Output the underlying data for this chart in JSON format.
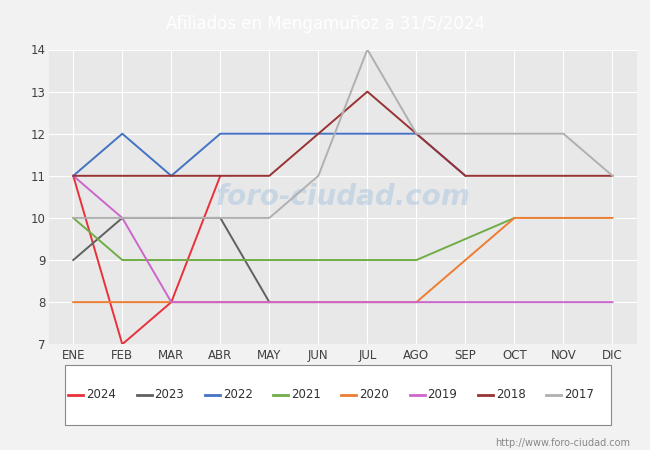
{
  "title": "Afiliados en Mengamuñoz a 31/5/2024",
  "header_bg": "#5b9bd5",
  "months": [
    "ENE",
    "FEB",
    "MAR",
    "ABR",
    "MAY",
    "JUN",
    "JUL",
    "AGO",
    "SEP",
    "OCT",
    "NOV",
    "DIC"
  ],
  "ylim": [
    7.0,
    14.0
  ],
  "yticks": [
    7.0,
    8.0,
    9.0,
    10.0,
    11.0,
    12.0,
    13.0,
    14.0
  ],
  "series": {
    "2024": {
      "color": "#e8313a",
      "data": [
        11,
        7,
        8,
        11,
        null,
        null,
        null,
        null,
        null,
        null,
        null,
        null
      ]
    },
    "2023": {
      "color": "#606060",
      "data": [
        9,
        10,
        10,
        10,
        8,
        null,
        null,
        null,
        null,
        null,
        null,
        null
      ]
    },
    "2022": {
      "color": "#4472c4",
      "data": [
        11,
        12,
        11,
        12,
        12,
        12,
        12,
        12,
        11,
        null,
        null,
        null
      ]
    },
    "2021": {
      "color": "#70ad47",
      "data": [
        10,
        9,
        9,
        9,
        9,
        9,
        9,
        9,
        null,
        10,
        null,
        null
      ]
    },
    "2020": {
      "color": "#ed7d31",
      "data": [
        8,
        8,
        8,
        8,
        8,
        8,
        8,
        8,
        9,
        10,
        10,
        10
      ]
    },
    "2019": {
      "color": "#cc66cc",
      "data": [
        11,
        10,
        8,
        8,
        8,
        8,
        8,
        8,
        8,
        8,
        8,
        8
      ]
    },
    "2018": {
      "color": "#993333",
      "data": [
        11,
        11,
        11,
        11,
        11,
        12,
        13,
        12,
        11,
        null,
        11,
        11
      ]
    },
    "2017": {
      "color": "#b0b0b0",
      "data": [
        10,
        10,
        10,
        10,
        10,
        11,
        14,
        12,
        12,
        12,
        12,
        11
      ]
    }
  },
  "footer_url": "http://www.foro-ciudad.com",
  "bg_color": "#f2f2f2",
  "plot_bg": "#e8e8e8",
  "grid_color": "#ffffff",
  "legend_years": [
    "2024",
    "2023",
    "2022",
    "2021",
    "2020",
    "2019",
    "2018",
    "2017"
  ]
}
